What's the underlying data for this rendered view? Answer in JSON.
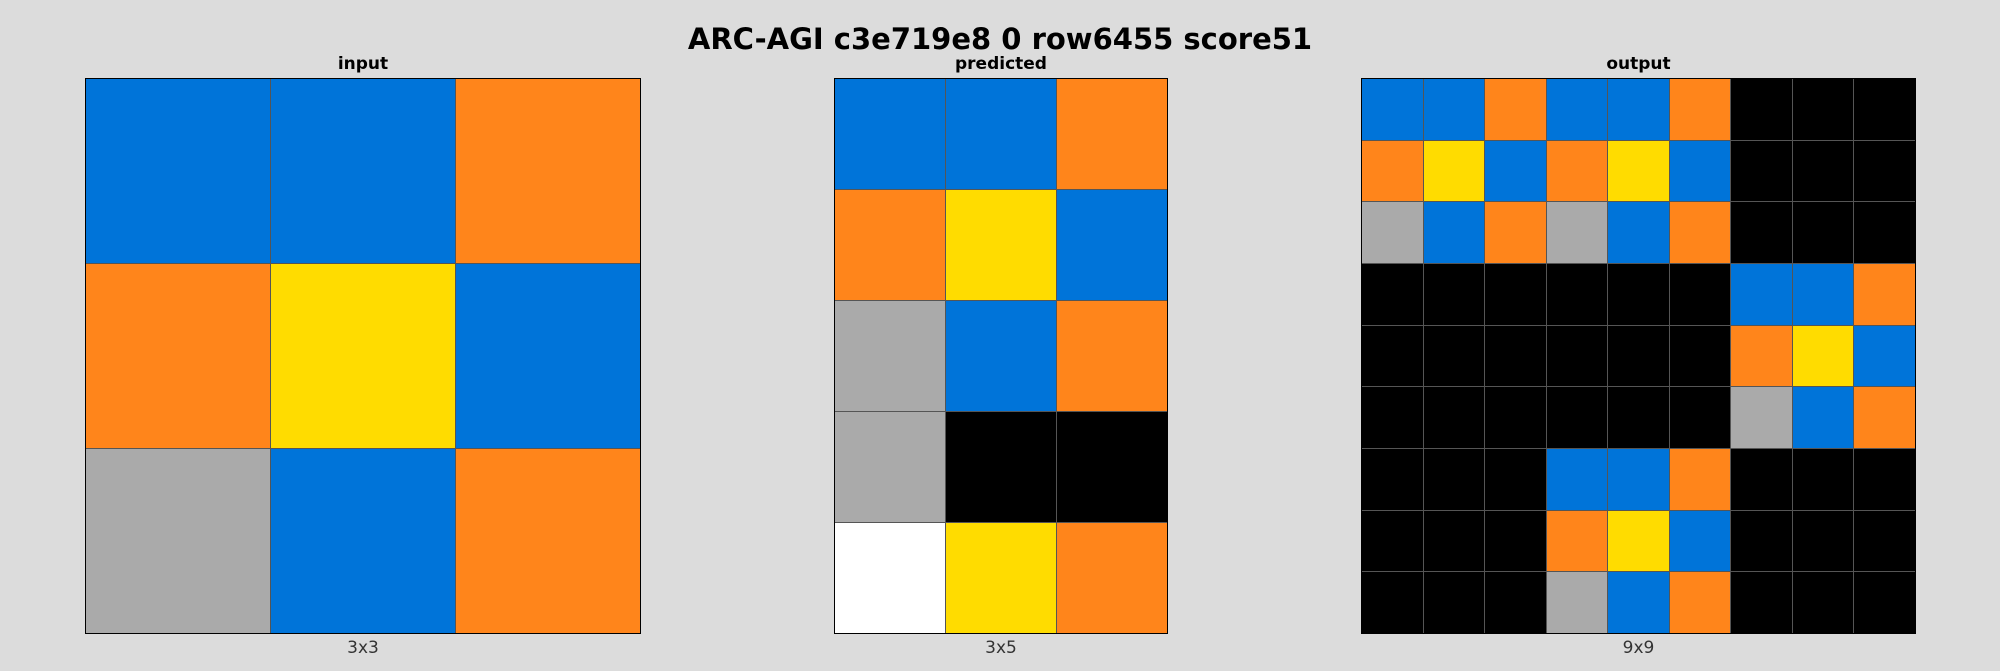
{
  "title": "ARC-AGI c3e719e8 0 row6455 score51",
  "palette": {
    "0": "#000000",
    "1": "#0074D9",
    "4": "#FFDC00",
    "5": "#AAAAAA",
    "7": "#FF851B",
    "9": "#FFFFFF"
  },
  "panels": {
    "input": {
      "label": "input",
      "size": "3x3",
      "grid": [
        [
          1,
          1,
          7
        ],
        [
          7,
          4,
          1
        ],
        [
          5,
          1,
          7
        ]
      ]
    },
    "predicted": {
      "label": "predicted",
      "size": "3x5",
      "grid": [
        [
          1,
          1,
          7
        ],
        [
          7,
          4,
          1
        ],
        [
          5,
          1,
          7
        ],
        [
          5,
          0,
          0
        ],
        [
          9,
          4,
          7
        ]
      ]
    },
    "output": {
      "label": "output",
      "size": "9x9",
      "grid": [
        [
          1,
          1,
          7,
          1,
          1,
          7,
          0,
          0,
          0
        ],
        [
          7,
          4,
          1,
          7,
          4,
          1,
          0,
          0,
          0
        ],
        [
          5,
          1,
          7,
          5,
          1,
          7,
          0,
          0,
          0
        ],
        [
          0,
          0,
          0,
          0,
          0,
          0,
          1,
          1,
          7
        ],
        [
          0,
          0,
          0,
          0,
          0,
          0,
          7,
          4,
          1
        ],
        [
          0,
          0,
          0,
          0,
          0,
          0,
          5,
          1,
          7
        ],
        [
          0,
          0,
          0,
          1,
          1,
          7,
          0,
          0,
          0
        ],
        [
          0,
          0,
          0,
          7,
          4,
          1,
          0,
          0,
          0
        ],
        [
          0,
          0,
          0,
          5,
          1,
          7,
          0,
          0,
          0
        ]
      ]
    }
  }
}
